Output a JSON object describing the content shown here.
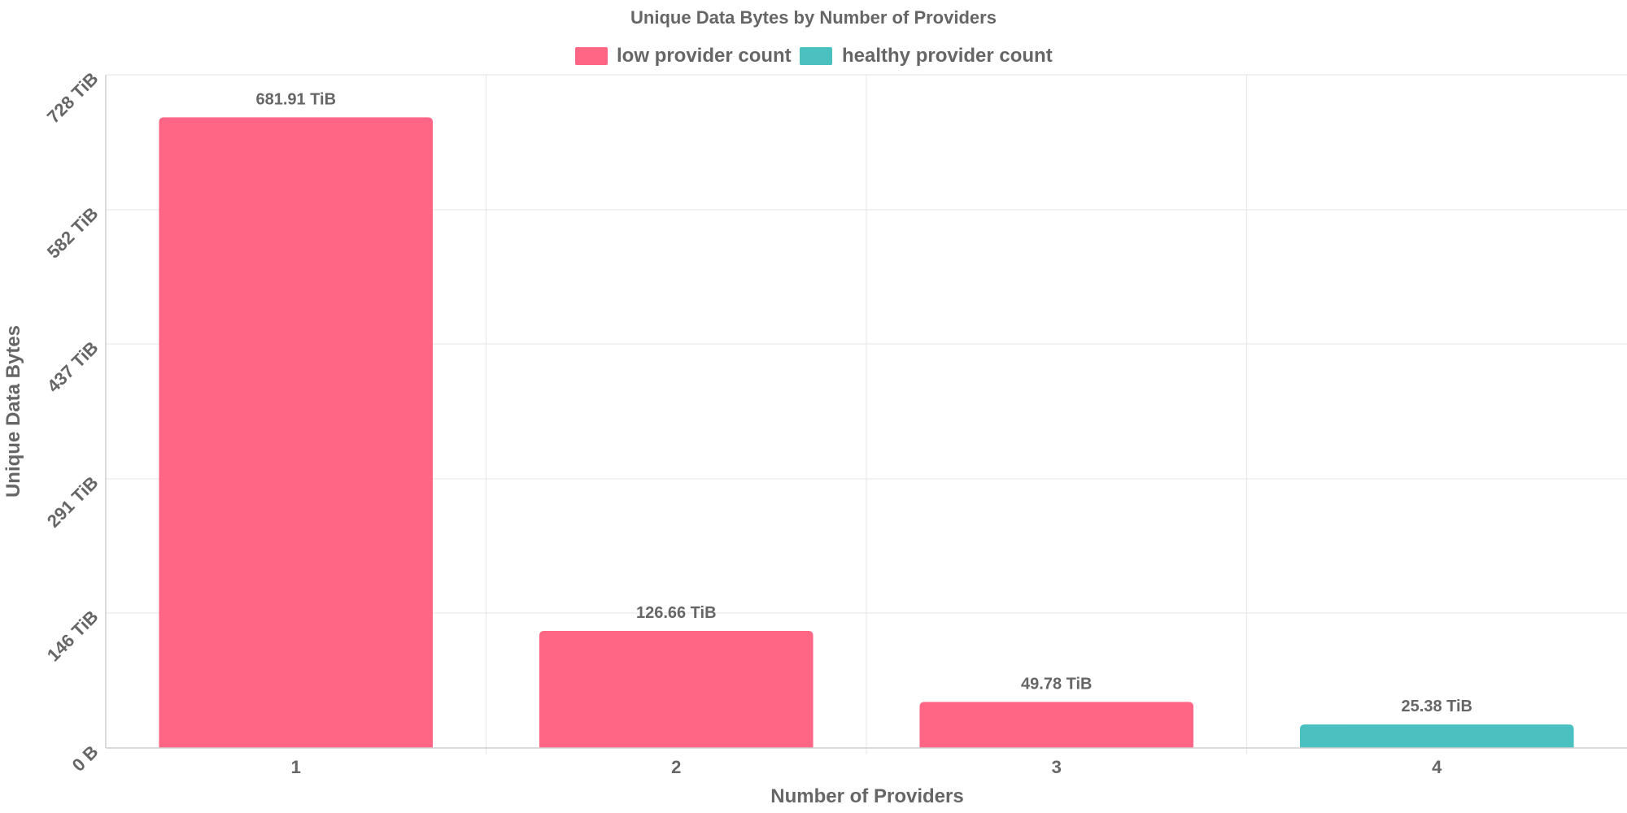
{
  "chart_data": {
    "type": "bar",
    "title": "Unique Data Bytes by Number of Providers",
    "xlabel": "Number of Providers",
    "ylabel": "Unique Data Bytes",
    "categories": [
      "1",
      "2",
      "3",
      "4"
    ],
    "values": [
      681.91,
      126.66,
      49.78,
      25.38
    ],
    "value_labels": [
      "681.91 TiB",
      "126.66 TiB",
      "49.78 TiB",
      "25.38 TiB"
    ],
    "bar_series": [
      "low provider count",
      "low provider count",
      "low provider count",
      "healthy provider count"
    ],
    "unit": "TiB",
    "ylim": [
      0,
      728
    ],
    "yticks": [
      0,
      146,
      291,
      437,
      582,
      728
    ],
    "ytick_labels": [
      "0 B",
      "146 TiB",
      "291 TiB",
      "437 TiB",
      "582 TiB",
      "728 TiB"
    ],
    "grid": true,
    "legend_position": "top-center",
    "series": [
      {
        "name": "low provider count",
        "color": "#ff6584"
      },
      {
        "name": "healthy provider count",
        "color": "#4bc0c0"
      }
    ]
  }
}
